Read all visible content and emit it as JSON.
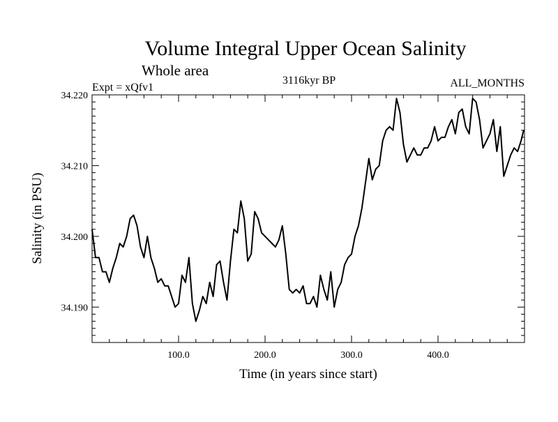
{
  "chart_data": {
    "type": "line",
    "title": "Volume Integral Upper Ocean Salinity",
    "subtitle": "Whole area",
    "annotation_left": "Expt = xQfv1",
    "annotation_center": "3116kyr BP",
    "annotation_right": "ALL_MONTHS",
    "xlabel": "Time (in years since start)",
    "ylabel": "Salinity (in PSU)",
    "xlim": [
      0,
      500
    ],
    "ylim": [
      34.185,
      34.22
    ],
    "x_ticks": [
      100,
      200,
      300,
      400
    ],
    "x_tick_labels": [
      "100.0",
      "200.0",
      "300.0",
      "400.0"
    ],
    "y_ticks": [
      34.19,
      34.2,
      34.21,
      34.22
    ],
    "y_tick_labels": [
      "34.190",
      "34.200",
      "34.210",
      "34.220"
    ],
    "series": [
      {
        "name": "Salinity",
        "x": [
          0,
          4,
          8,
          12,
          16,
          20,
          24,
          28,
          32,
          36,
          40,
          44,
          48,
          52,
          56,
          60,
          64,
          68,
          72,
          76,
          80,
          84,
          88,
          92,
          96,
          100,
          104,
          108,
          112,
          116,
          120,
          124,
          128,
          132,
          136,
          140,
          144,
          148,
          152,
          156,
          160,
          164,
          168,
          172,
          176,
          180,
          184,
          188,
          192,
          196,
          200,
          204,
          208,
          212,
          216,
          220,
          224,
          228,
          232,
          236,
          240,
          244,
          248,
          252,
          256,
          260,
          264,
          268,
          272,
          276,
          280,
          284,
          288,
          292,
          296,
          300,
          304,
          308,
          312,
          316,
          320,
          324,
          328,
          332,
          336,
          340,
          344,
          348,
          352,
          356,
          360,
          364,
          368,
          372,
          376,
          380,
          384,
          388,
          392,
          396,
          400,
          404,
          408,
          412,
          416,
          420,
          424,
          428,
          432,
          436,
          440,
          444,
          448,
          452,
          456,
          460,
          464,
          468,
          472,
          476,
          480,
          484,
          488,
          492,
          496,
          499
        ],
        "values": [
          34.201,
          34.197,
          34.197,
          34.195,
          34.195,
          34.1935,
          34.1955,
          34.197,
          34.199,
          34.1985,
          34.2,
          34.2025,
          34.203,
          34.2015,
          34.1985,
          34.197,
          34.2,
          34.197,
          34.1955,
          34.1935,
          34.194,
          34.193,
          34.193,
          34.1915,
          34.19,
          34.1905,
          34.1945,
          34.1935,
          34.197,
          34.1905,
          34.188,
          34.1895,
          34.1915,
          34.1905,
          34.1935,
          34.1915,
          34.196,
          34.1965,
          34.1935,
          34.191,
          34.1965,
          34.201,
          34.2005,
          34.205,
          34.2025,
          34.1965,
          34.1975,
          34.2035,
          34.2025,
          34.2005,
          34.2,
          34.1995,
          34.199,
          34.1985,
          34.1995,
          34.2015,
          34.1975,
          34.1925,
          34.192,
          34.1925,
          34.192,
          34.193,
          34.1905,
          34.1905,
          34.1915,
          34.19,
          34.1945,
          34.1925,
          34.191,
          34.195,
          34.19,
          34.1925,
          34.1935,
          34.196,
          34.197,
          34.1975,
          34.2,
          34.2015,
          34.204,
          34.2075,
          34.211,
          34.208,
          34.2095,
          34.21,
          34.2135,
          34.215,
          34.2155,
          34.215,
          34.2195,
          34.2175,
          34.213,
          34.2105,
          34.2115,
          34.2125,
          34.2115,
          34.2115,
          34.2125,
          34.2125,
          34.2135,
          34.2155,
          34.2135,
          34.214,
          34.214,
          34.2155,
          34.2165,
          34.2145,
          34.2175,
          34.218,
          34.2155,
          34.2145,
          34.2195,
          34.219,
          34.2165,
          34.2125,
          34.2135,
          34.2145,
          34.2165,
          34.212,
          34.2155,
          34.2085,
          34.21,
          34.2115,
          34.2125,
          34.212,
          34.2135,
          34.215
        ]
      }
    ]
  }
}
